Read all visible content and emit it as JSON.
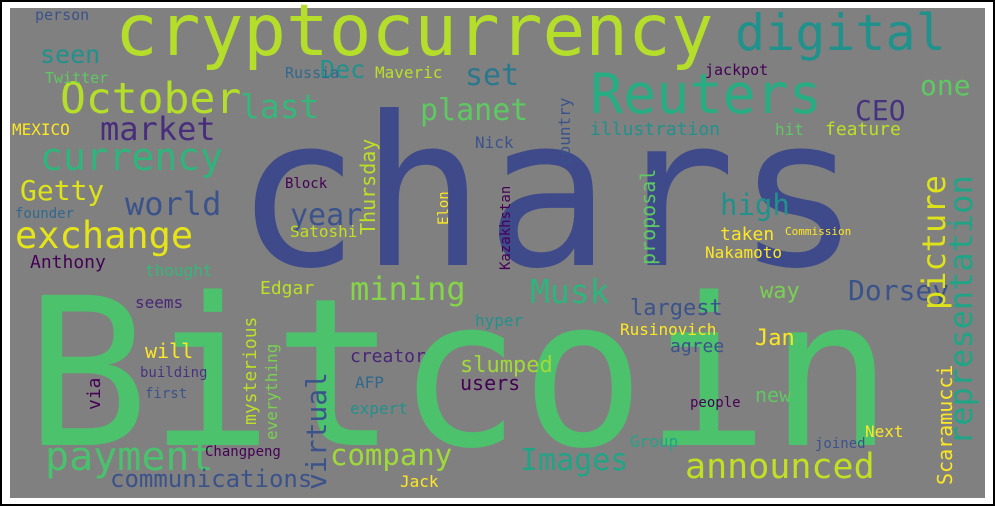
{
  "words": [
    "chars",
    "Bitcoin",
    "cryptocurrency",
    "digital",
    "Reuters",
    "October",
    "last",
    "seen",
    "person",
    "Twitter",
    "market",
    "MEXICO",
    "currency",
    "Getty",
    "world",
    "exchange",
    "Anthony",
    "founder",
    "thought",
    "payment",
    "company",
    "communications",
    "announced",
    "Images",
    "Musk",
    "mining",
    "high",
    "Dorsey",
    "CEO",
    "one",
    "feature",
    "set",
    "Dec",
    "planet",
    "Maveric",
    "Russia",
    "Nick",
    "illustration",
    "jackpot",
    "hit",
    "year",
    "Satoshi",
    "Block",
    "Edgar",
    "taken",
    "Nakamoto",
    "Commission",
    "largest",
    "Rusinovich",
    "way",
    "Jan",
    "agree",
    "new",
    "people",
    "Group",
    "slumped",
    "users",
    "hyper",
    "creator",
    "AFP",
    "expert",
    "will",
    "seems",
    "building",
    "first",
    "Changpeng",
    "Jack",
    "Next",
    "joined",
    "representation",
    "picture",
    "virtual",
    "Thursday",
    "proposal",
    "mysterious",
    "everything",
    "Scaramucci",
    "Kazakhstan",
    "country",
    "via",
    "Elon"
  ]
}
